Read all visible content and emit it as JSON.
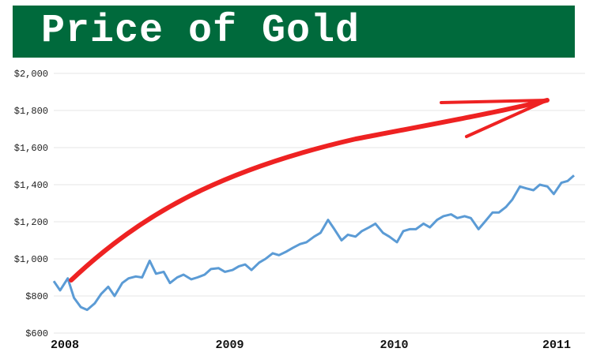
{
  "chart_data": {
    "type": "line",
    "title": "Price of Gold",
    "xlabel": "",
    "ylabel": "",
    "ylim": [
      600,
      2000
    ],
    "xlim": [
      "2008-01-01",
      "2011-03-01"
    ],
    "y_ticks": [
      {
        "value": 600,
        "label": "$600"
      },
      {
        "value": 800,
        "label": "$800"
      },
      {
        "value": 1000,
        "label": "$1,000"
      },
      {
        "value": 1200,
        "label": "$1,200"
      },
      {
        "value": 1400,
        "label": "$1,400"
      },
      {
        "value": 1600,
        "label": "$1,600"
      },
      {
        "value": 1800,
        "label": "$1,800"
      },
      {
        "value": 2000,
        "label": "$2,000"
      }
    ],
    "x_ticks": [
      "2008",
      "2009",
      "2010",
      "2011"
    ],
    "grid": true,
    "colors": {
      "line": "#5b9bd5",
      "arrow": "#ee2222",
      "grid": "#e6e6e6",
      "banner": "#006a3c"
    },
    "series": [
      {
        "x": [
          "2008-01-01",
          "2008-01-15",
          "2008-02-01",
          "2008-02-15",
          "2008-03-01",
          "2008-03-15",
          "2008-04-01",
          "2008-04-15",
          "2008-05-01",
          "2008-05-15",
          "2008-06-01",
          "2008-06-15",
          "2008-07-01",
          "2008-07-15",
          "2008-08-01",
          "2008-08-15",
          "2008-09-01",
          "2008-09-15",
          "2008-10-01",
          "2008-10-15",
          "2008-11-01",
          "2008-11-15",
          "2008-12-01",
          "2008-12-15",
          "2009-01-01",
          "2009-01-15",
          "2009-02-01",
          "2009-02-15",
          "2009-03-01",
          "2009-03-15",
          "2009-04-01",
          "2009-04-15",
          "2009-05-01",
          "2009-05-15",
          "2009-06-01",
          "2009-06-15",
          "2009-07-01",
          "2009-07-15",
          "2009-08-01",
          "2009-08-15",
          "2009-09-01",
          "2009-09-15",
          "2009-10-01",
          "2009-10-15",
          "2009-11-01",
          "2009-11-15",
          "2009-12-01",
          "2009-12-15",
          "2010-01-01",
          "2010-01-15",
          "2010-02-01",
          "2010-02-15",
          "2010-03-01",
          "2010-03-15",
          "2010-04-01",
          "2010-04-15",
          "2010-05-01",
          "2010-05-15",
          "2010-06-01",
          "2010-06-15",
          "2010-07-01",
          "2010-07-15",
          "2010-08-01",
          "2010-08-15",
          "2010-09-01",
          "2010-09-15",
          "2010-10-01",
          "2010-10-15",
          "2010-11-01",
          "2010-11-15",
          "2010-12-01",
          "2010-12-15",
          "2011-01-01",
          "2011-01-15",
          "2011-02-01",
          "2011-02-15",
          "2011-03-01"
        ],
        "values": [
          880,
          830,
          895,
          790,
          740,
          725,
          760,
          810,
          850,
          800,
          870,
          895,
          905,
          900,
          990,
          920,
          930,
          870,
          900,
          915,
          890,
          900,
          915,
          945,
          950,
          930,
          940,
          960,
          970,
          940,
          980,
          1000,
          1030,
          1020,
          1040,
          1060,
          1080,
          1090,
          1120,
          1140,
          1210,
          1160,
          1100,
          1130,
          1120,
          1150,
          1170,
          1190,
          1140,
          1120,
          1090,
          1150,
          1160,
          1160,
          1190,
          1170,
          1210,
          1230,
          1240,
          1220,
          1230,
          1220,
          1160,
          1200,
          1250,
          1250,
          1280,
          1320,
          1390,
          1380,
          1370,
          1400,
          1390,
          1350,
          1410,
          1420,
          1450
        ]
      }
    ]
  }
}
